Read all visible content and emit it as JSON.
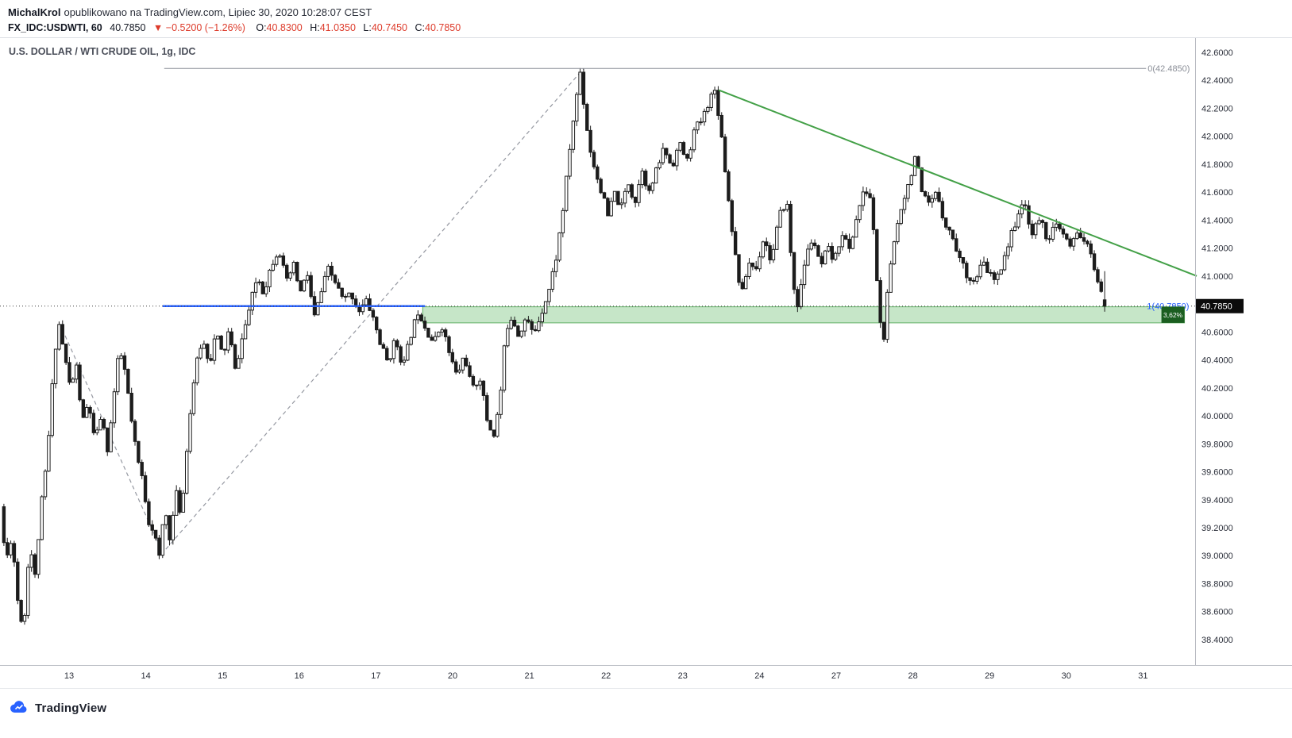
{
  "page": {
    "author": "MichalKrol",
    "published_suffix": "opublikowano na TradingView.com, Lipiec 30, 2020 10:28:07 CEST",
    "footer_brand": "TradingView"
  },
  "colors": {
    "negative": "#dd3b2b",
    "accent_blue": "#2962ff",
    "trend_green": "#43a047",
    "gray_drawing": "#9598a1"
  },
  "quote": {
    "symbol_interval": "FX_IDC:USDWTI, 60",
    "last": "40.7850",
    "change_icon": "▼",
    "change": "−0.5200 (−1.26%)",
    "o_label": "O:",
    "o": "40.8300",
    "h_label": "H:",
    "h": "41.0350",
    "l_label": "L:",
    "l": "40.7450",
    "c_label": "C:",
    "c": "40.7850"
  },
  "chart_data": {
    "type": "candlestick",
    "title": "U.S. DOLLAR / WTI CRUDE OIL, 1g, IDC",
    "symbol": "USDWTI",
    "interval_minutes": 60,
    "y_axis": {
      "min": 38.218,
      "max": 42.702,
      "tick_step": 0.2,
      "tick_labels": [
        "42.6000",
        "42.4000",
        "42.2000",
        "42.0000",
        "41.8000",
        "41.6000",
        "41.4000",
        "41.2000",
        "41.0000",
        "40.8000",
        "40.6000",
        "40.4000",
        "40.2000",
        "40.0000",
        "39.8000",
        "39.6000",
        "39.4000",
        "39.2000",
        "39.0000",
        "38.8000",
        "38.6000",
        "38.4000"
      ]
    },
    "x_axis": {
      "tick_labels": [
        "13",
        "14",
        "15",
        "16",
        "17",
        "20",
        "21",
        "22",
        "23",
        "24",
        "27",
        "28",
        "29",
        "30",
        "31"
      ]
    },
    "last_candle": {
      "o": 40.83,
      "h": 41.035,
      "l": 40.745,
      "c": 40.785
    },
    "candles": {
      "count": 320,
      "from_day": -0.85,
      "to_day": 13.5,
      "seed": 11
    },
    "candle_colors": {
      "up_fill": "#ffffff",
      "down_fill": "#1c1c1c",
      "stroke": "#1c1c1c"
    },
    "price_path": [
      [
        -0.85,
        39.35
      ],
      [
        -0.78,
        38.95
      ],
      [
        -0.7,
        39.15
      ],
      [
        -0.63,
        38.7
      ],
      [
        -0.55,
        38.46
      ],
      [
        -0.47,
        39.1
      ],
      [
        -0.4,
        38.85
      ],
      [
        -0.32,
        39.35
      ],
      [
        -0.24,
        39.7
      ],
      [
        -0.17,
        40.25
      ],
      [
        -0.1,
        40.7
      ],
      [
        -0.02,
        40.45
      ],
      [
        0.06,
        40.2
      ],
      [
        0.14,
        40.35
      ],
      [
        0.22,
        39.95
      ],
      [
        0.3,
        40.1
      ],
      [
        0.38,
        39.8
      ],
      [
        0.46,
        40.0
      ],
      [
        0.55,
        39.75
      ],
      [
        0.62,
        40.1
      ],
      [
        0.7,
        40.48
      ],
      [
        0.78,
        40.3
      ],
      [
        0.86,
        39.95
      ],
      [
        0.93,
        39.7
      ],
      [
        1.0,
        39.55
      ],
      [
        1.08,
        39.25
      ],
      [
        1.15,
        39.18
      ],
      [
        1.22,
        38.98
      ],
      [
        1.29,
        39.35
      ],
      [
        1.36,
        39.12
      ],
      [
        1.44,
        39.45
      ],
      [
        1.51,
        39.28
      ],
      [
        1.59,
        39.85
      ],
      [
        1.68,
        40.3
      ],
      [
        1.78,
        40.55
      ],
      [
        1.88,
        40.38
      ],
      [
        1.96,
        40.6
      ],
      [
        2.05,
        40.42
      ],
      [
        2.13,
        40.62
      ],
      [
        2.21,
        40.32
      ],
      [
        2.3,
        40.55
      ],
      [
        2.4,
        40.78
      ],
      [
        2.5,
        41.0
      ],
      [
        2.58,
        40.88
      ],
      [
        2.68,
        41.08
      ],
      [
        2.78,
        41.2
      ],
      [
        2.88,
        40.95
      ],
      [
        2.97,
        41.08
      ],
      [
        3.06,
        40.88
      ],
      [
        3.15,
        41.02
      ],
      [
        3.24,
        40.7
      ],
      [
        3.33,
        40.88
      ],
      [
        3.42,
        41.05
      ],
      [
        3.52,
        40.95
      ],
      [
        3.62,
        40.82
      ],
      [
        3.72,
        40.88
      ],
      [
        3.82,
        40.75
      ],
      [
        3.92,
        40.82
      ],
      [
        4.0,
        40.72
      ],
      [
        4.1,
        40.52
      ],
      [
        4.2,
        40.38
      ],
      [
        4.3,
        40.55
      ],
      [
        4.4,
        40.35
      ],
      [
        4.5,
        40.58
      ],
      [
        4.6,
        40.76
      ],
      [
        4.7,
        40.62
      ],
      [
        4.8,
        40.52
      ],
      [
        4.9,
        40.66
      ],
      [
        5.0,
        40.45
      ],
      [
        5.1,
        40.28
      ],
      [
        5.2,
        40.44
      ],
      [
        5.3,
        40.18
      ],
      [
        5.4,
        40.28
      ],
      [
        5.5,
        39.95
      ],
      [
        5.58,
        39.86
      ],
      [
        5.66,
        40.1
      ],
      [
        5.74,
        40.62
      ],
      [
        5.82,
        40.72
      ],
      [
        5.9,
        40.58
      ],
      [
        6.0,
        40.7
      ],
      [
        6.1,
        40.58
      ],
      [
        6.2,
        40.74
      ],
      [
        6.3,
        40.9
      ],
      [
        6.4,
        41.15
      ],
      [
        6.5,
        41.55
      ],
      [
        6.58,
        41.95
      ],
      [
        6.65,
        42.25
      ],
      [
        6.71,
        42.47
      ],
      [
        6.77,
        42.15
      ],
      [
        6.84,
        41.9
      ],
      [
        6.92,
        41.72
      ],
      [
        7.0,
        41.58
      ],
      [
        7.07,
        41.42
      ],
      [
        7.15,
        41.6
      ],
      [
        7.24,
        41.48
      ],
      [
        7.33,
        41.68
      ],
      [
        7.42,
        41.52
      ],
      [
        7.52,
        41.78
      ],
      [
        7.6,
        41.58
      ],
      [
        7.7,
        41.75
      ],
      [
        7.8,
        41.92
      ],
      [
        7.9,
        41.78
      ],
      [
        8.0,
        41.95
      ],
      [
        8.1,
        41.82
      ],
      [
        8.2,
        42.05
      ],
      [
        8.3,
        42.12
      ],
      [
        8.4,
        42.28
      ],
      [
        8.47,
        42.33
      ],
      [
        8.55,
        42.0
      ],
      [
        8.64,
        41.55
      ],
      [
        8.73,
        41.15
      ],
      [
        8.81,
        40.85
      ],
      [
        8.9,
        41.1
      ],
      [
        9.0,
        41.05
      ],
      [
        9.1,
        41.28
      ],
      [
        9.2,
        41.1
      ],
      [
        9.3,
        41.42
      ],
      [
        9.4,
        41.55
      ],
      [
        9.48,
        40.95
      ],
      [
        9.55,
        40.78
      ],
      [
        9.64,
        41.12
      ],
      [
        9.74,
        41.28
      ],
      [
        9.84,
        41.05
      ],
      [
        9.93,
        41.2
      ],
      [
        10.02,
        41.1
      ],
      [
        10.12,
        41.32
      ],
      [
        10.22,
        41.18
      ],
      [
        10.32,
        41.45
      ],
      [
        10.42,
        41.62
      ],
      [
        10.5,
        41.55
      ],
      [
        10.58,
        40.95
      ],
      [
        10.65,
        40.45
      ],
      [
        10.72,
        40.92
      ],
      [
        10.81,
        41.28
      ],
      [
        10.9,
        41.52
      ],
      [
        11.0,
        41.68
      ],
      [
        11.08,
        41.88
      ],
      [
        11.16,
        41.58
      ],
      [
        11.26,
        41.5
      ],
      [
        11.36,
        41.6
      ],
      [
        11.46,
        41.38
      ],
      [
        11.56,
        41.28
      ],
      [
        11.66,
        41.12
      ],
      [
        11.76,
        41.0
      ],
      [
        11.86,
        40.95
      ],
      [
        11.95,
        41.1
      ],
      [
        12.04,
        41.02
      ],
      [
        12.13,
        40.95
      ],
      [
        12.22,
        41.12
      ],
      [
        12.32,
        41.28
      ],
      [
        12.42,
        41.46
      ],
      [
        12.51,
        41.5
      ],
      [
        12.6,
        41.3
      ],
      [
        12.7,
        41.42
      ],
      [
        12.8,
        41.26
      ],
      [
        12.9,
        41.36
      ],
      [
        13.0,
        41.3
      ],
      [
        13.1,
        41.2
      ],
      [
        13.2,
        41.32
      ],
      [
        13.3,
        41.24
      ],
      [
        13.4,
        41.08
      ],
      [
        13.47,
        40.95
      ],
      [
        13.52,
        40.8
      ]
    ],
    "annotations": {
      "fib_top": {
        "price": 42.485,
        "from_day": 1.24,
        "to_day": 14.04,
        "label": "0(42.4850)",
        "color": "#8b8f98"
      },
      "fib_bottom_label": {
        "text": "1(40.7850)",
        "day": 14.05,
        "price": 40.785,
        "color": "#2962ff"
      },
      "blue_line": {
        "price": 40.785,
        "from_day": 1.22,
        "to_day": 4.64,
        "color": "#2962ff"
      },
      "zigzag": {
        "points": [
          [
            -0.09,
            40.62
          ],
          [
            1.22,
            39.02
          ],
          [
            6.708,
            42.485
          ]
        ],
        "color": "#9598a1",
        "style": "dashed"
      },
      "trendline": {
        "from": [
          8.47,
          42.33
        ],
        "to": [
          14.7,
          41.0
        ],
        "color": "#43a047"
      },
      "zone": {
        "from_day": 4.61,
        "to_day": 14.54,
        "price_top": 40.78,
        "price_bottom": 40.665,
        "fill": "rgba(129,199,132,0.45)",
        "edge": "rgba(67,160,71,0.8)"
      },
      "percent_box": {
        "from_day": 14.24,
        "to_day": 14.54,
        "label": "3,62%",
        "color": "#1b5e20"
      },
      "current_price": {
        "price": 40.785,
        "tag": "40.7850",
        "tag_bg": "#0c0c0c",
        "line_style": "dotted"
      }
    }
  }
}
